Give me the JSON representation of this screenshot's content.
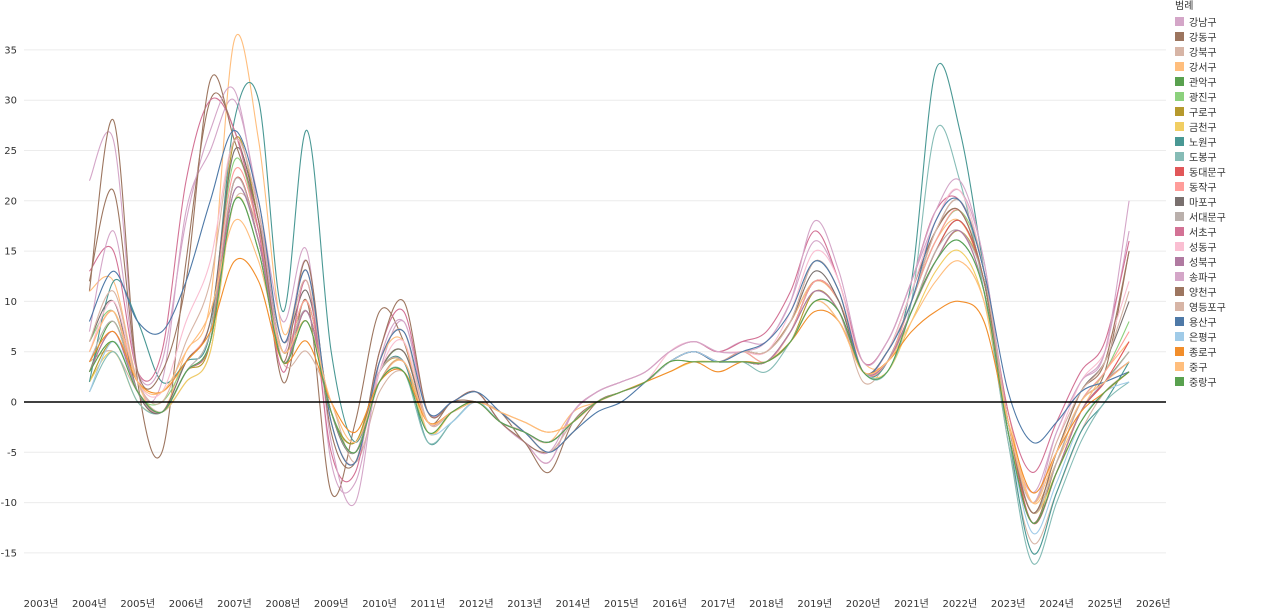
{
  "chart_data": {
    "type": "line",
    "legend_title": "범례",
    "legend_position": "right",
    "grid": true,
    "ylim": [
      -18,
      38
    ],
    "xlim": [
      2003.0,
      2026.0
    ],
    "yticks": [
      35,
      30,
      25,
      20,
      15,
      10,
      5,
      0,
      -5,
      -10,
      -15
    ],
    "ytick_labels": [
      "35",
      "30",
      "25",
      "20",
      "15",
      "10",
      "5",
      "0",
      "-5",
      "-10",
      "-15"
    ],
    "xticks": [
      2003,
      2004,
      2005,
      2006,
      2007,
      2008,
      2009,
      2010,
      2011,
      2012,
      2013,
      2014,
      2015,
      2016,
      2017,
      2018,
      2019,
      2020,
      2021,
      2022,
      2023,
      2024,
      2025,
      2026
    ],
    "xtick_labels": [
      "2003년",
      "2004년",
      "2005년",
      "2006년",
      "2007년",
      "2008년",
      "2009년",
      "2010년",
      "2011년",
      "2012년",
      "2013년",
      "2014년",
      "2015년",
      "2016년",
      "2017년",
      "2018년",
      "2019년",
      "2020년",
      "2021년",
      "2022년",
      "2023년",
      "2024년",
      "2025년",
      "2026년"
    ],
    "x": [
      2004.0,
      2004.5,
      2005.0,
      2005.5,
      2006.0,
      2006.5,
      2007.0,
      2007.5,
      2008.0,
      2008.5,
      2009.0,
      2009.5,
      2010.0,
      2010.5,
      2011.0,
      2011.5,
      2012.0,
      2012.5,
      2013.0,
      2013.5,
      2014.0,
      2014.5,
      2015.0,
      2015.5,
      2016.0,
      2016.5,
      2017.0,
      2017.5,
      2018.0,
      2018.5,
      2019.0,
      2019.5,
      2020.0,
      2020.5,
      2021.0,
      2021.5,
      2022.0,
      2022.5,
      2023.0,
      2023.5,
      2024.0,
      2024.5,
      2025.0,
      2025.5
    ],
    "series": [
      {
        "name": "강남구",
        "color": "#d4a6c8",
        "values": [
          22,
          26,
          3,
          2,
          19,
          25,
          30,
          20,
          8,
          15,
          -6,
          -8,
          3,
          8,
          -1,
          0,
          1,
          -2,
          -4,
          -5,
          -1,
          1,
          2,
          3,
          5,
          6,
          5,
          6,
          6,
          10,
          16,
          12,
          4,
          6,
          12,
          18,
          21,
          14,
          -2,
          -9,
          -3,
          2,
          5,
          17
        ]
      },
      {
        "name": "강동구",
        "color": "#9c755f",
        "values": [
          11,
          28,
          2,
          -5,
          14,
          30,
          27,
          18,
          2,
          10,
          -9,
          -2,
          9,
          6,
          -2,
          0,
          0,
          -1,
          -4,
          -5,
          -3,
          0,
          1,
          2,
          4,
          5,
          4,
          5,
          5,
          8,
          12,
          10,
          3,
          5,
          11,
          17,
          19,
          12,
          -3,
          -12,
          -6,
          0,
          3,
          15
        ]
      },
      {
        "name": "강북구",
        "color": "#d7b5a6",
        "values": [
          4,
          5,
          1,
          -1,
          2,
          5,
          20,
          17,
          4,
          5,
          0,
          -6,
          1,
          3,
          -2,
          -1,
          0,
          -2,
          -3,
          -5,
          -2,
          0,
          1,
          2,
          4,
          5,
          4,
          4,
          4,
          7,
          11,
          9,
          2,
          4,
          9,
          14,
          17,
          11,
          -4,
          -14,
          -9,
          -3,
          1,
          3
        ]
      },
      {
        "name": "강서구",
        "color": "#ffbe7d",
        "values": [
          11,
          12,
          2,
          -1,
          5,
          10,
          36,
          26,
          7,
          13,
          -2,
          -6,
          4,
          6,
          -3,
          -1,
          0,
          -2,
          -3,
          -4,
          -1,
          0,
          1,
          2,
          4,
          5,
          4,
          5,
          5,
          8,
          12,
          10,
          4,
          4,
          10,
          16,
          18,
          12,
          -1,
          -10,
          -6,
          -1,
          3,
          6
        ]
      },
      {
        "name": "관악구",
        "color": "#59a14f",
        "values": [
          3,
          8,
          1,
          -1,
          3,
          6,
          22,
          16,
          4,
          9,
          -1,
          -4,
          3,
          5,
          -2,
          -1,
          0,
          -2,
          -3,
          -4,
          -2,
          0,
          1,
          2,
          4,
          5,
          4,
          4,
          4,
          7,
          12,
          10,
          3,
          4,
          9,
          15,
          18,
          12,
          -3,
          -12,
          -7,
          -1,
          2,
          5
        ]
      },
      {
        "name": "광진구",
        "color": "#8cd17d",
        "values": [
          6,
          9,
          1,
          0,
          4,
          8,
          24,
          17,
          5,
          10,
          -1,
          -5,
          3,
          5,
          -2,
          -1,
          0,
          -1,
          -3,
          -4,
          -2,
          0,
          1,
          2,
          4,
          5,
          4,
          5,
          4,
          7,
          12,
          10,
          3,
          4,
          10,
          16,
          19,
          13,
          -2,
          -11,
          -6,
          0,
          3,
          8
        ]
      },
      {
        "name": "구로구",
        "color": "#b6992d",
        "values": [
          2,
          6,
          1,
          -1,
          3,
          6,
          26,
          18,
          5,
          10,
          -1,
          -4,
          3,
          4,
          -2,
          -1,
          0,
          -2,
          -3,
          -4,
          -2,
          0,
          1,
          2,
          4,
          5,
          4,
          4,
          4,
          6,
          11,
          9,
          3,
          4,
          9,
          14,
          17,
          12,
          -3,
          -12,
          -7,
          -1,
          2,
          4
        ]
      },
      {
        "name": "금천구",
        "color": "#f1ce63",
        "values": [
          2,
          5,
          0,
          -1,
          2,
          5,
          20,
          15,
          4,
          8,
          -1,
          -5,
          2,
          4,
          -3,
          -1,
          0,
          -2,
          -3,
          -4,
          -2,
          0,
          1,
          2,
          3,
          4,
          4,
          4,
          4,
          6,
          10,
          8,
          3,
          3,
          8,
          13,
          15,
          10,
          -3,
          -11,
          -7,
          -2,
          1,
          3
        ]
      },
      {
        "name": "노원구",
        "color": "#499894",
        "values": [
          2,
          12,
          8,
          2,
          4,
          7,
          28,
          30,
          9,
          27,
          5,
          -4,
          3,
          4,
          -4,
          -2,
          0,
          -2,
          -3,
          -4,
          -2,
          0,
          1,
          2,
          4,
          5,
          4,
          4,
          4,
          7,
          12,
          10,
          3,
          4,
          12,
          33,
          27,
          13,
          -3,
          -15,
          -9,
          -3,
          0,
          4
        ]
      },
      {
        "name": "도봉구",
        "color": "#86bcb6",
        "values": [
          1,
          5,
          0,
          -1,
          3,
          6,
          21,
          16,
          5,
          9,
          -1,
          -5,
          2,
          3,
          -4,
          -2,
          0,
          -2,
          -3,
          -4,
          -2,
          0,
          1,
          2,
          4,
          5,
          4,
          4,
          3,
          6,
          10,
          9,
          3,
          3,
          10,
          27,
          22,
          11,
          -4,
          -16,
          -10,
          -4,
          0,
          2
        ]
      },
      {
        "name": "동대문구",
        "color": "#e15759",
        "values": [
          3,
          7,
          1,
          -1,
          3,
          6,
          22,
          16,
          4,
          9,
          -1,
          -5,
          3,
          4,
          -2,
          -1,
          0,
          -2,
          -3,
          -4,
          -2,
          0,
          1,
          2,
          4,
          5,
          4,
          4,
          4,
          7,
          12,
          10,
          3,
          4,
          9,
          15,
          18,
          12,
          -2,
          -12,
          -7,
          -1,
          2,
          6
        ]
      },
      {
        "name": "동작구",
        "color": "#ff9d9a",
        "values": [
          5,
          9,
          1,
          -1,
          4,
          8,
          23,
          17,
          5,
          10,
          -1,
          -5,
          3,
          5,
          -2,
          -1,
          0,
          -1,
          -3,
          -4,
          -2,
          0,
          1,
          2,
          4,
          5,
          4,
          5,
          4,
          7,
          12,
          10,
          3,
          4,
          10,
          16,
          19,
          12,
          -2,
          -11,
          -6,
          0,
          3,
          7
        ]
      },
      {
        "name": "마포구",
        "color": "#79706e",
        "values": [
          6,
          10,
          1,
          -1,
          4,
          8,
          25,
          18,
          6,
          11,
          -1,
          -5,
          3,
          5,
          -2,
          -1,
          0,
          -1,
          -3,
          -4,
          -2,
          0,
          1,
          2,
          4,
          5,
          4,
          5,
          5,
          8,
          13,
          10,
          3,
          5,
          10,
          17,
          20,
          13,
          -2,
          -11,
          -5,
          1,
          4,
          10
        ]
      },
      {
        "name": "서대문구",
        "color": "#bab0ac",
        "values": [
          4,
          8,
          1,
          -1,
          3,
          7,
          22,
          16,
          5,
          9,
          -1,
          -5,
          3,
          4,
          -2,
          -1,
          0,
          -1,
          -3,
          -4,
          -2,
          0,
          1,
          2,
          4,
          5,
          4,
          4,
          4,
          7,
          11,
          9,
          3,
          4,
          9,
          15,
          17,
          12,
          -2,
          -11,
          -6,
          0,
          2,
          5
        ]
      },
      {
        "name": "서초구",
        "color": "#d37295",
        "values": [
          13,
          15,
          3,
          5,
          22,
          30,
          27,
          17,
          3,
          12,
          -5,
          -7,
          5,
          9,
          -1,
          0,
          1,
          -2,
          -4,
          -6,
          -1,
          1,
          2,
          3,
          5,
          6,
          5,
          6,
          7,
          11,
          17,
          12,
          4,
          6,
          12,
          19,
          20,
          13,
          -1,
          -7,
          -2,
          3,
          6,
          16
        ]
      },
      {
        "name": "성동구",
        "color": "#fabfd2",
        "values": [
          5,
          10,
          2,
          1,
          8,
          14,
          26,
          19,
          6,
          13,
          -2,
          -6,
          3,
          6,
          -2,
          -1,
          0,
          -1,
          -3,
          -4,
          -2,
          0,
          1,
          2,
          5,
          6,
          5,
          5,
          5,
          9,
          15,
          12,
          3,
          5,
          11,
          18,
          21,
          13,
          -2,
          -10,
          -4,
          2,
          5,
          12
        ]
      },
      {
        "name": "성북구",
        "color": "#b07aa1",
        "values": [
          3,
          7,
          1,
          -1,
          3,
          6,
          21,
          16,
          4,
          9,
          -1,
          -5,
          2,
          4,
          -2,
          -1,
          0,
          -2,
          -3,
          -4,
          -2,
          0,
          1,
          2,
          4,
          5,
          4,
          4,
          4,
          7,
          11,
          9,
          3,
          4,
          9,
          14,
          17,
          11,
          -3,
          -12,
          -7,
          -1,
          2,
          4
        ]
      },
      {
        "name": "송파구",
        "color": "#d4a6c8",
        "values": [
          7,
          17,
          3,
          4,
          18,
          27,
          31,
          19,
          5,
          14,
          -4,
          -10,
          4,
          8,
          -1,
          0,
          1,
          -2,
          -4,
          -6,
          -1,
          1,
          2,
          3,
          5,
          6,
          5,
          5,
          6,
          10,
          18,
          13,
          4,
          6,
          12,
          19,
          22,
          14,
          -2,
          -10,
          -3,
          2,
          5,
          20
        ]
      },
      {
        "name": "양천구",
        "color": "#9d7660",
        "values": [
          12,
          21,
          3,
          3,
          12,
          32,
          26,
          18,
          4,
          14,
          -3,
          -6,
          5,
          10,
          -1,
          0,
          1,
          -2,
          -4,
          -7,
          -2,
          0,
          1,
          2,
          4,
          5,
          4,
          5,
          5,
          8,
          14,
          11,
          3,
          5,
          10,
          17,
          19,
          12,
          -2,
          -11,
          -5,
          1,
          4,
          15
        ]
      },
      {
        "name": "영등포구",
        "color": "#d7b5a6",
        "values": [
          6,
          11,
          2,
          0,
          6,
          12,
          26,
          19,
          6,
          12,
          -2,
          -6,
          4,
          7,
          -2,
          -1,
          0,
          -1,
          -3,
          -5,
          -2,
          0,
          1,
          2,
          4,
          5,
          4,
          5,
          5,
          8,
          14,
          11,
          3,
          5,
          10,
          17,
          20,
          13,
          -2,
          -10,
          -4,
          1,
          4,
          11
        ]
      },
      {
        "name": "용산구",
        "color": "#4e79a7",
        "values": [
          8,
          13,
          8,
          7,
          12,
          20,
          27,
          20,
          6,
          13,
          -2,
          -6,
          4,
          7,
          -1,
          0,
          1,
          -1,
          -3,
          -5,
          -3,
          -1,
          0,
          2,
          4,
          5,
          4,
          5,
          6,
          9,
          14,
          11,
          3,
          5,
          10,
          18,
          20,
          13,
          1,
          -4,
          -2,
          1,
          2,
          3
        ]
      },
      {
        "name": "은평구",
        "color": "#a0cbe8",
        "values": [
          1,
          6,
          1,
          -1,
          3,
          6,
          20,
          15,
          4,
          8,
          -1,
          -5,
          2,
          3,
          -3,
          -2,
          0,
          -2,
          -3,
          -4,
          -2,
          0,
          1,
          2,
          4,
          5,
          4,
          4,
          4,
          6,
          10,
          8,
          3,
          3,
          9,
          14,
          16,
          11,
          -3,
          -13,
          -8,
          -2,
          1,
          2
        ]
      },
      {
        "name": "종로구",
        "color": "#f28e2b",
        "values": [
          4,
          7,
          2,
          1,
          4,
          7,
          14,
          12,
          4,
          6,
          0,
          -3,
          2,
          3,
          -2,
          -1,
          0,
          -1,
          -2,
          -3,
          -2,
          0,
          1,
          2,
          3,
          4,
          3,
          4,
          4,
          6,
          9,
          8,
          3,
          4,
          7,
          9,
          10,
          8,
          -2,
          -9,
          -5,
          -1,
          1,
          3
        ]
      },
      {
        "name": "중구",
        "color": "#ffbe7d",
        "values": [
          5,
          9,
          2,
          1,
          5,
          9,
          18,
          14,
          5,
          8,
          0,
          -4,
          2,
          4,
          -2,
          -1,
          0,
          -1,
          -2,
          -3,
          -2,
          0,
          1,
          2,
          4,
          4,
          4,
          4,
          4,
          6,
          10,
          8,
          3,
          4,
          8,
          12,
          14,
          10,
          -2,
          -10,
          -5,
          0,
          2,
          4
        ]
      },
      {
        "name": "중랑구",
        "color": "#59a14f",
        "values": [
          3,
          6,
          1,
          -1,
          3,
          6,
          20,
          15,
          4,
          8,
          -1,
          -5,
          2,
          3,
          -3,
          -1,
          0,
          -2,
          -3,
          -4,
          -2,
          0,
          1,
          2,
          4,
          4,
          4,
          4,
          4,
          6,
          10,
          9,
          3,
          3,
          9,
          14,
          16,
          11,
          -3,
          -12,
          -7,
          -2,
          1,
          3
        ]
      }
    ]
  }
}
